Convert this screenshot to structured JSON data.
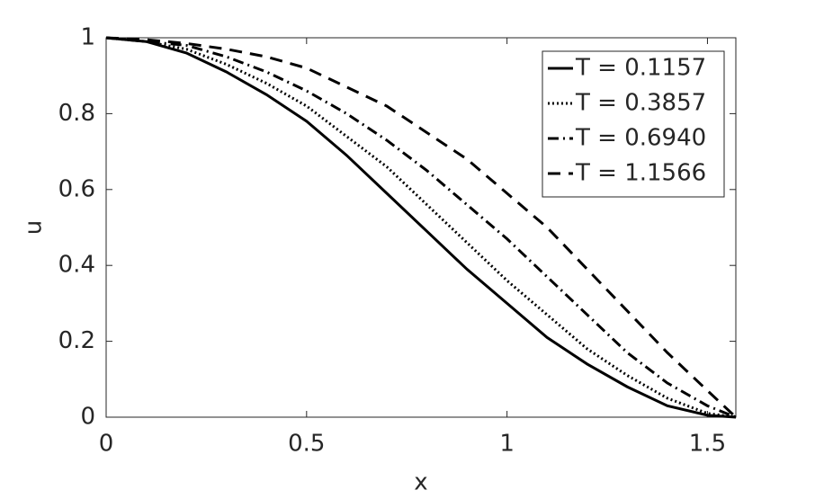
{
  "chart_data": {
    "type": "line",
    "xlabel": "x",
    "ylabel": "u",
    "x": [
      0,
      0.1,
      0.2,
      0.3,
      0.4,
      0.5,
      0.6,
      0.7,
      0.8,
      0.9,
      1.0,
      1.1,
      1.2,
      1.3,
      1.4,
      1.5,
      1.5708
    ],
    "series": [
      {
        "name": "T = 0.1157",
        "color": "#000000",
        "dash": "solid",
        "values": [
          1,
          0.99,
          0.96,
          0.91,
          0.85,
          0.78,
          0.69,
          0.59,
          0.49,
          0.39,
          0.3,
          0.21,
          0.14,
          0.08,
          0.03,
          0.005,
          0
        ]
      },
      {
        "name": "T = 0.3857",
        "color": "#000000",
        "dash": "dotted",
        "values": [
          1,
          0.99,
          0.97,
          0.93,
          0.88,
          0.82,
          0.74,
          0.66,
          0.56,
          0.46,
          0.36,
          0.27,
          0.18,
          0.11,
          0.05,
          0.01,
          0
        ]
      },
      {
        "name": "T = 0.6940",
        "color": "#000000",
        "dash": "dashdot",
        "values": [
          1,
          0.99,
          0.98,
          0.95,
          0.91,
          0.86,
          0.8,
          0.73,
          0.65,
          0.56,
          0.47,
          0.37,
          0.27,
          0.17,
          0.09,
          0.03,
          0
        ]
      },
      {
        "name": "T = 1.1566",
        "color": "#000000",
        "dash": "dashed",
        "values": [
          1,
          0.995,
          0.985,
          0.97,
          0.95,
          0.92,
          0.87,
          0.82,
          0.75,
          0.68,
          0.59,
          0.5,
          0.39,
          0.28,
          0.17,
          0.07,
          0
        ]
      }
    ],
    "xlim": [
      0,
      1.5708
    ],
    "ylim": [
      0,
      1
    ],
    "xticks": [
      0,
      0.5,
      1,
      1.5
    ],
    "yticks": [
      0,
      0.2,
      0.4,
      0.6,
      0.8,
      1
    ],
    "legend": "upper right",
    "grid": false
  }
}
